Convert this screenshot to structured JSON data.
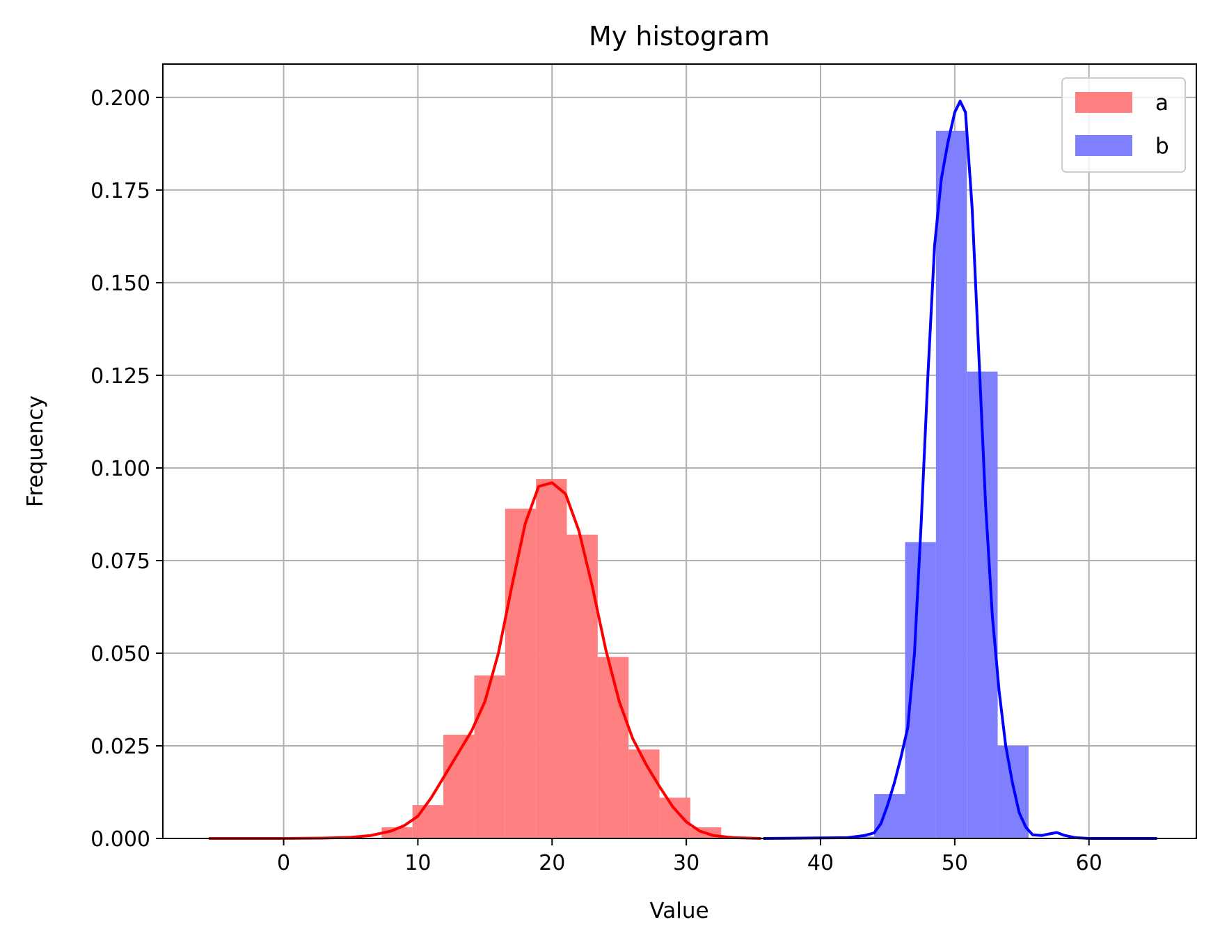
{
  "chart_data": {
    "type": "bar",
    "title": "My histogram",
    "xlabel": "Value",
    "ylabel": "Frequency",
    "xlim": [
      -9,
      68
    ],
    "ylim": [
      0,
      0.209
    ],
    "x_ticks": [
      0,
      10,
      20,
      30,
      40,
      50,
      60
    ],
    "x_tick_labels": [
      "0",
      "10",
      "20",
      "30",
      "40",
      "50",
      "60"
    ],
    "y_ticks": [
      0,
      0.025,
      0.05,
      0.075,
      0.1,
      0.125,
      0.15,
      0.175,
      0.2
    ],
    "y_tick_labels": [
      "0.000",
      "0.025",
      "0.050",
      "0.075",
      "0.100",
      "0.125",
      "0.150",
      "0.175",
      "0.200"
    ],
    "grid": true,
    "legend_position": "top-right",
    "series": [
      {
        "name": "a",
        "hist_color": "#ff8080",
        "line_color": "#ff0000",
        "bins": [
          {
            "x0": 7.3,
            "x1": 9.6,
            "y": 0.003
          },
          {
            "x0": 9.6,
            "x1": 11.9,
            "y": 0.009
          },
          {
            "x0": 11.9,
            "x1": 14.2,
            "y": 0.028
          },
          {
            "x0": 14.2,
            "x1": 16.5,
            "y": 0.044
          },
          {
            "x0": 16.5,
            "x1": 18.8,
            "y": 0.089
          },
          {
            "x0": 18.8,
            "x1": 21.1,
            "y": 0.097
          },
          {
            "x0": 21.1,
            "x1": 23.4,
            "y": 0.082
          },
          {
            "x0": 23.4,
            "x1": 25.7,
            "y": 0.049
          },
          {
            "x0": 25.7,
            "x1": 28.0,
            "y": 0.024
          },
          {
            "x0": 28.0,
            "x1": 30.3,
            "y": 0.011
          },
          {
            "x0": 30.3,
            "x1": 32.6,
            "y": 0.003
          }
        ],
        "kde": [
          [
            -5.5,
            0
          ],
          [
            0,
            0
          ],
          [
            3,
            0.0001
          ],
          [
            5,
            0.0003
          ],
          [
            6.5,
            0.0008
          ],
          [
            8,
            0.002
          ],
          [
            9,
            0.0035
          ],
          [
            10,
            0.006
          ],
          [
            11,
            0.011
          ],
          [
            12,
            0.017
          ],
          [
            13,
            0.023
          ],
          [
            14,
            0.029
          ],
          [
            15,
            0.037
          ],
          [
            16,
            0.05
          ],
          [
            17,
            0.068
          ],
          [
            18,
            0.085
          ],
          [
            19,
            0.095
          ],
          [
            20,
            0.096
          ],
          [
            21,
            0.093
          ],
          [
            22,
            0.083
          ],
          [
            23,
            0.068
          ],
          [
            24,
            0.051
          ],
          [
            25,
            0.037
          ],
          [
            26,
            0.027
          ],
          [
            27,
            0.02
          ],
          [
            28,
            0.014
          ],
          [
            29,
            0.0085
          ],
          [
            30,
            0.0045
          ],
          [
            31,
            0.002
          ],
          [
            32,
            0.0008
          ],
          [
            33.5,
            0.0002
          ],
          [
            35.5,
            0
          ]
        ]
      },
      {
        "name": "b",
        "hist_color": "#8080ff",
        "line_color": "#0000ff",
        "bins": [
          {
            "x0": 42.6,
            "x1": 44.0,
            "y": 0.0005
          },
          {
            "x0": 44.0,
            "x1": 46.3,
            "y": 0.012
          },
          {
            "x0": 46.3,
            "x1": 48.6,
            "y": 0.08
          },
          {
            "x0": 48.6,
            "x1": 50.9,
            "y": 0.191
          },
          {
            "x0": 50.9,
            "x1": 53.2,
            "y": 0.126
          },
          {
            "x0": 53.2,
            "x1": 55.5,
            "y": 0.025
          }
        ],
        "kde": [
          [
            35.8,
            0
          ],
          [
            42,
            0.0002
          ],
          [
            43.3,
            0.0008
          ],
          [
            44,
            0.0015
          ],
          [
            44.5,
            0.004
          ],
          [
            45,
            0.009
          ],
          [
            45.5,
            0.015
          ],
          [
            46,
            0.022
          ],
          [
            46.5,
            0.03
          ],
          [
            47,
            0.05
          ],
          [
            47.5,
            0.085
          ],
          [
            48,
            0.125
          ],
          [
            48.5,
            0.16
          ],
          [
            49,
            0.178
          ],
          [
            49.5,
            0.188
          ],
          [
            50,
            0.196
          ],
          [
            50.4,
            0.199
          ],
          [
            50.8,
            0.196
          ],
          [
            51.3,
            0.17
          ],
          [
            51.8,
            0.13
          ],
          [
            52.3,
            0.09
          ],
          [
            52.8,
            0.06
          ],
          [
            53.3,
            0.04
          ],
          [
            53.8,
            0.025
          ],
          [
            54.3,
            0.015
          ],
          [
            54.8,
            0.007
          ],
          [
            55.3,
            0.003
          ],
          [
            55.8,
            0.001
          ],
          [
            56.5,
            0.0008
          ],
          [
            57,
            0.0012
          ],
          [
            57.6,
            0.0016
          ],
          [
            58.2,
            0.0008
          ],
          [
            59,
            0.0002
          ],
          [
            60,
            0
          ],
          [
            65,
            0
          ]
        ]
      }
    ]
  }
}
